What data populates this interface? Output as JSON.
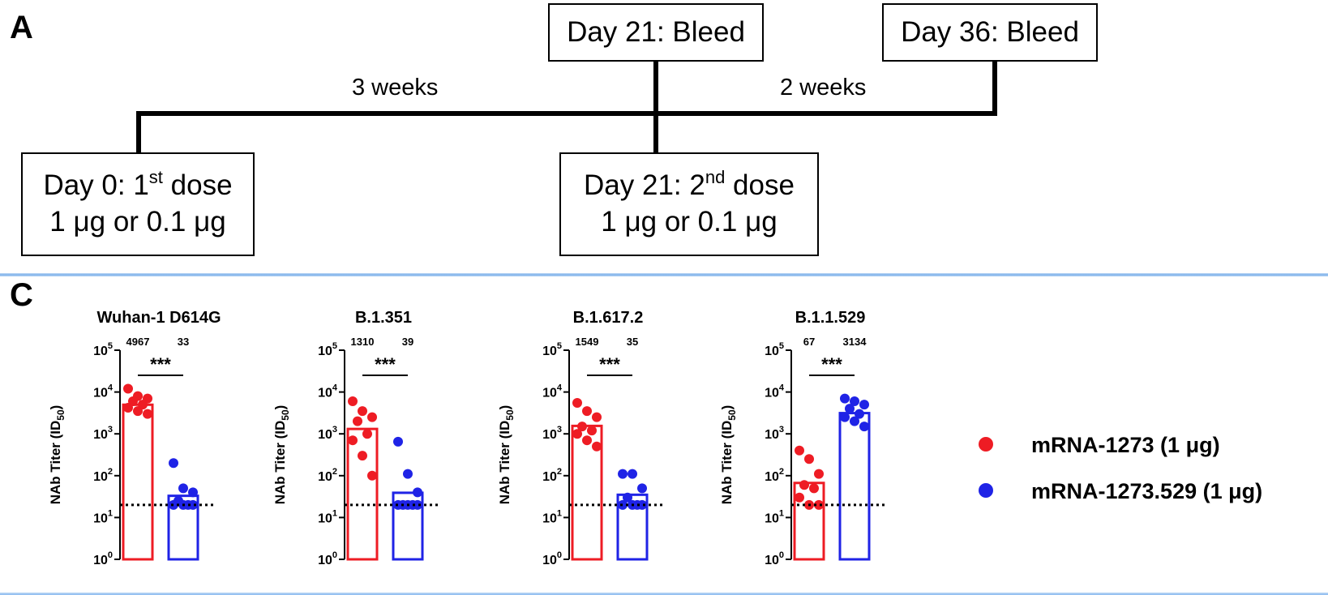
{
  "panel_a": {
    "label": "A",
    "boxes": {
      "day21_bleed": "Day 21: Bleed",
      "day36_bleed": "Day 36: Bleed",
      "day0_dose_prefix": "Day 0: 1",
      "day0_dose_sup": "st",
      "day0_dose_suffix": " dose",
      "day0_amount": "1 μg or 0.1 μg",
      "day21_dose_prefix": "Day 21: 2",
      "day21_dose_sup": "nd",
      "day21_dose_suffix": " dose",
      "day21_amount": "1 μg or 0.1 μg"
    },
    "intervals": {
      "first": "3 weeks",
      "second": "2 weeks"
    }
  },
  "panel_c": {
    "label": "C",
    "legend": [
      {
        "name": "mRNA-1273 (1 μg)",
        "color": "#ee1c24"
      },
      {
        "name": "mRNA-1273.529 (1 μg)",
        "color": "#1f23e6"
      }
    ],
    "significance_text": "***"
  },
  "chart_data": [
    {
      "type": "bar",
      "title": "Wuhan-1 D614G",
      "ylabel": "NAb Titer (ID50)",
      "yscale": "log",
      "ylim": [
        1,
        100000
      ],
      "yticks": [
        "10^0",
        "10^1",
        "10^2",
        "10^3",
        "10^4",
        "10^5"
      ],
      "limit_of_detection": 20,
      "significance": "***",
      "series": [
        {
          "name": "mRNA-1273 (1 μg)",
          "color": "#ee1c24",
          "value": 4967,
          "label": "4967",
          "points": [
            12000,
            8000,
            7000,
            6000,
            5000,
            4200,
            3500,
            3000
          ]
        },
        {
          "name": "mRNA-1273.529 (1 μg)",
          "color": "#1f23e6",
          "value": 33,
          "label": "33",
          "points": [
            200,
            50,
            40,
            25,
            20,
            20,
            20,
            20
          ]
        }
      ]
    },
    {
      "type": "bar",
      "title": "B.1.351",
      "ylabel": "NAb Titer (ID50)",
      "yscale": "log",
      "ylim": [
        1,
        100000
      ],
      "yticks": [
        "10^0",
        "10^1",
        "10^2",
        "10^3",
        "10^4",
        "10^5"
      ],
      "limit_of_detection": 20,
      "significance": "***",
      "series": [
        {
          "name": "mRNA-1273 (1 μg)",
          "color": "#ee1c24",
          "value": 1310,
          "label": "1310",
          "points": [
            6000,
            3500,
            2500,
            2000,
            1000,
            700,
            300,
            100
          ]
        },
        {
          "name": "mRNA-1273.529 (1 μg)",
          "color": "#1f23e6",
          "value": 39,
          "label": "39",
          "points": [
            650,
            110,
            40,
            20,
            20,
            20,
            20,
            20
          ]
        }
      ]
    },
    {
      "type": "bar",
      "title": "B.1.617.2",
      "ylabel": "NAb Titer (ID50)",
      "yscale": "log",
      "ylim": [
        1,
        100000
      ],
      "yticks": [
        "10^0",
        "10^1",
        "10^2",
        "10^3",
        "10^4",
        "10^5"
      ],
      "limit_of_detection": 20,
      "significance": "***",
      "series": [
        {
          "name": "mRNA-1273 (1 μg)",
          "color": "#ee1c24",
          "value": 1549,
          "label": "1549",
          "points": [
            5500,
            3500,
            2500,
            1500,
            1200,
            1000,
            700,
            500
          ]
        },
        {
          "name": "mRNA-1273.529 (1 μg)",
          "color": "#1f23e6",
          "value": 35,
          "label": "35",
          "points": [
            110,
            110,
            50,
            30,
            20,
            20,
            20,
            20
          ]
        }
      ]
    },
    {
      "type": "bar",
      "title": "B.1.1.529",
      "ylabel": "NAb Titer (ID50)",
      "yscale": "log",
      "ylim": [
        1,
        100000
      ],
      "yticks": [
        "10^0",
        "10^1",
        "10^2",
        "10^3",
        "10^4",
        "10^5"
      ],
      "limit_of_detection": 20,
      "significance": "***",
      "series": [
        {
          "name": "mRNA-1273 (1 μg)",
          "color": "#ee1c24",
          "value": 67,
          "label": "67",
          "points": [
            400,
            250,
            110,
            60,
            50,
            30,
            20,
            20
          ]
        },
        {
          "name": "mRNA-1273.529 (1 μg)",
          "color": "#1f23e6",
          "value": 3134,
          "label": "3134",
          "points": [
            7000,
            6000,
            5000,
            4000,
            3000,
            2500,
            2000,
            1500
          ]
        }
      ]
    }
  ]
}
